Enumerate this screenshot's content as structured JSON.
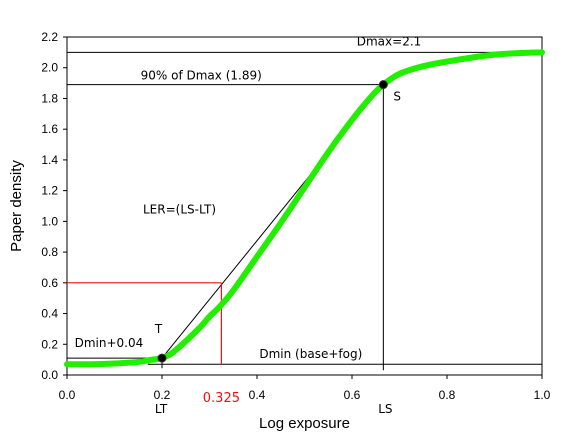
{
  "chart_data": {
    "type": "line",
    "xlabel": "Log exposure",
    "ylabel": "Paper density",
    "xlim": [
      0.0,
      1.0
    ],
    "ylim": [
      0.0,
      2.2
    ],
    "x_ticks": [
      "0.0",
      "0.2",
      "0.4",
      "0.6",
      "0.8",
      "1.0"
    ],
    "y_ticks": [
      "0.0",
      "0.2",
      "0.4",
      "0.6",
      "0.8",
      "1.0",
      "1.2",
      "1.4",
      "1.6",
      "1.8",
      "2.0",
      "2.2"
    ],
    "grid": false,
    "colors": {
      "curve": "#22ee00",
      "construction": "#000000",
      "highlight": "#ee1111"
    },
    "series": [
      {
        "x": [
          0.0,
          0.05,
          0.1,
          0.15,
          0.18,
          0.2,
          0.22,
          0.25,
          0.28,
          0.3,
          0.32,
          0.35,
          0.4,
          0.45,
          0.5,
          0.55,
          0.6,
          0.64,
          0.666,
          0.7,
          0.75,
          0.8,
          0.85,
          0.9,
          0.95,
          1.0
        ],
        "values": [
          0.07,
          0.07,
          0.075,
          0.085,
          0.1,
          0.11,
          0.14,
          0.22,
          0.31,
          0.38,
          0.44,
          0.55,
          0.77,
          0.99,
          1.22,
          1.45,
          1.66,
          1.81,
          1.89,
          1.96,
          2.01,
          2.04,
          2.065,
          2.085,
          2.095,
          2.1
        ]
      }
    ],
    "points": [
      {
        "label": "T",
        "x": 0.2,
        "y": 0.11
      },
      {
        "label": "S",
        "x": 0.666,
        "y": 1.89
      }
    ],
    "reference_lines": {
      "dmax": {
        "label": "Dmax=2.1",
        "y": 2.1
      },
      "dmax90": {
        "label": "90% of Dmax (1.89)",
        "y": 1.89
      },
      "dmin_plus": {
        "label": "Dmin+0.04",
        "y": 0.11
      },
      "dmin": {
        "label": "Dmin (base+fog)",
        "y": 0.07
      },
      "ls_drop": {
        "x": 0.666
      },
      "highlight": {
        "x": 0.325,
        "y": 0.6
      }
    },
    "annotations": {
      "ler": "LER=(LS-LT)",
      "lt_label": "LT",
      "ls_label": "LS",
      "highlight_x_label": "0.325"
    }
  }
}
